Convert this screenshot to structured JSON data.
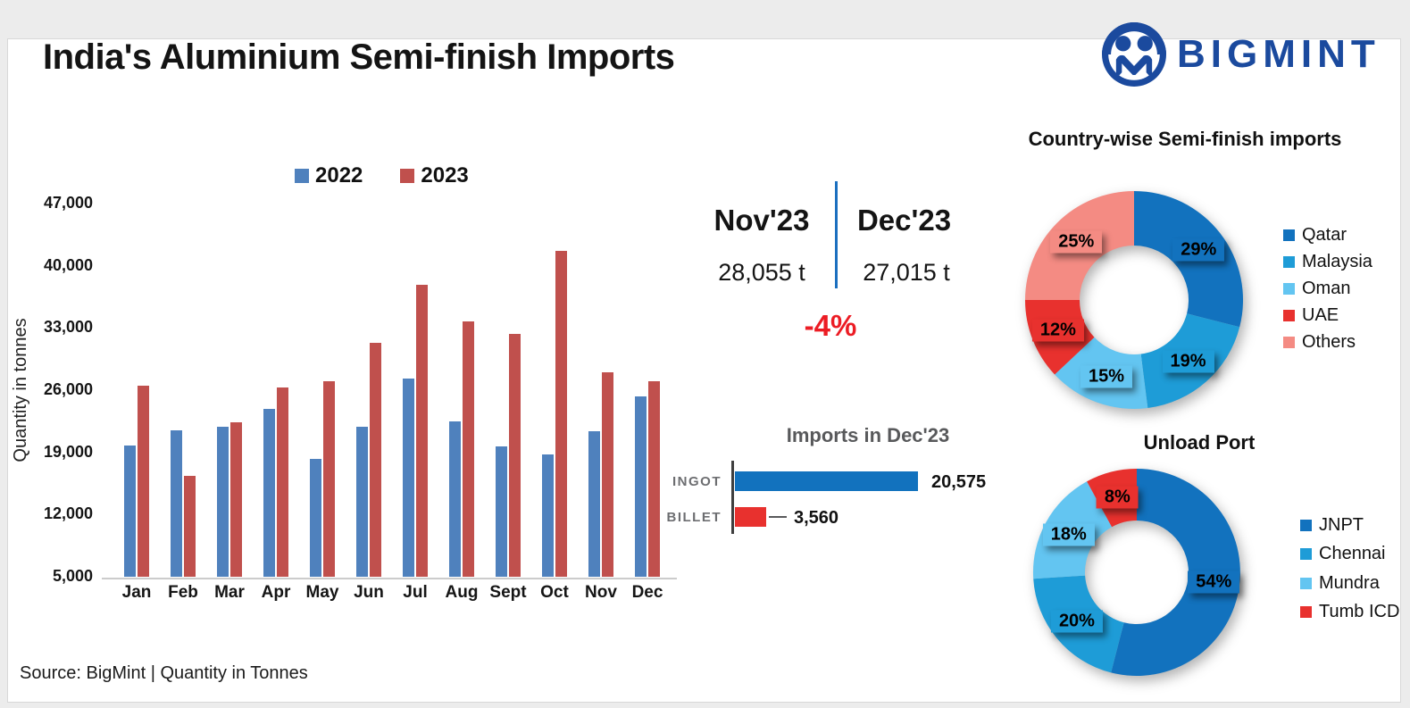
{
  "header": {
    "title": "India's Aluminium Semi-finish Imports",
    "brand": "BIGMINT",
    "brand_color": "#1B4A9E"
  },
  "comparison": {
    "left_label": "Nov'23",
    "left_value": "28,055 t",
    "right_label": "Dec'23",
    "right_value": "27,015 t",
    "change": "-4%",
    "change_color": "#EC1C24",
    "divider_color": "#1B6FBF"
  },
  "footer": {
    "source": "Source: BigMint | Quantity in Tonnes"
  },
  "chart_data": [
    {
      "id": "monthly_imports",
      "type": "bar",
      "title": "",
      "ylabel": "Quantity in tonnes",
      "ylim": [
        5000,
        47000
      ],
      "y_ticks": [
        5000,
        12000,
        19000,
        26000,
        33000,
        40000,
        47000
      ],
      "grid": false,
      "legend_position": "top",
      "categories": [
        "Jan",
        "Feb",
        "Mar",
        "Apr",
        "May",
        "Jun",
        "Jul",
        "Aug",
        "Sept",
        "Oct",
        "Nov",
        "Dec"
      ],
      "series": [
        {
          "name": "2022",
          "color": "#4F81BD",
          "values": [
            19800,
            21500,
            21900,
            23900,
            18300,
            21900,
            27300,
            22500,
            19700,
            18800,
            21400,
            25300
          ]
        },
        {
          "name": "2023",
          "color": "#C0504D",
          "values": [
            26500,
            16400,
            22400,
            26300,
            27000,
            31300,
            37900,
            33700,
            32300,
            41700,
            28055,
            27015
          ]
        }
      ]
    },
    {
      "id": "dec_imports",
      "type": "bar",
      "orientation": "horizontal",
      "title": "Imports in Dec'23",
      "xlim": [
        0,
        20575
      ],
      "categories": [
        "INGOT",
        "BILLET"
      ],
      "values": [
        20575,
        3560
      ],
      "value_labels": [
        "20,575",
        "3,560"
      ],
      "colors": [
        "#1272BE",
        "#E8312E"
      ]
    },
    {
      "id": "country_imports",
      "type": "pie",
      "donut": true,
      "title": "Country-wise Semi-finish imports",
      "legend_position": "right",
      "labels": [
        "Qatar",
        "Malaysia",
        "Oman",
        "UAE",
        "Others"
      ],
      "values": [
        29,
        19,
        15,
        12,
        25
      ],
      "pct_labels": [
        "29%",
        "19%",
        "15%",
        "12%",
        "25%"
      ],
      "colors": [
        "#1272BE",
        "#1E9CD7",
        "#63C5F1",
        "#E8312E",
        "#F48B83"
      ]
    },
    {
      "id": "unload_port",
      "type": "pie",
      "donut": true,
      "title": "Unload Port",
      "legend_position": "right",
      "labels": [
        "JNPT",
        "Chennai",
        "Mundra",
        "Tumb ICD"
      ],
      "values": [
        54,
        20,
        18,
        8
      ],
      "pct_labels": [
        "54%",
        "20%",
        "18%",
        "8%"
      ],
      "colors": [
        "#1272BE",
        "#1E9CD7",
        "#63C5F1",
        "#E8312E"
      ]
    }
  ]
}
